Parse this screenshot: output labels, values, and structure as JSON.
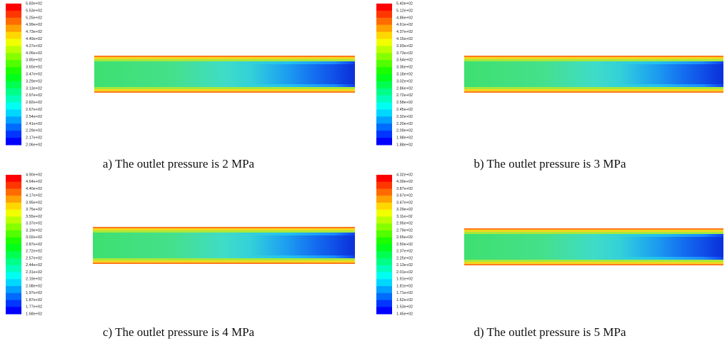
{
  "panels": [
    {
      "caption": "a) The outlet pressure is 2 MPa",
      "colorbar_labels": [
        "5.83e+02",
        "5.53e+02",
        "5.25e+02",
        "4.99e+02",
        "4.73e+02",
        "4.49e+02",
        "4.27e+02",
        "4.05e+02",
        "3.85e+02",
        "3.65e+02",
        "3.47e+02",
        "3.29e+02",
        "3.13e+02",
        "2.97e+02",
        "2.82e+02",
        "2.67e+02",
        "2.54e+02",
        "2.41e+02",
        "2.29e+02",
        "2.17e+02",
        "2.06e+02"
      ]
    },
    {
      "caption": "b) The outlet pressure is 3 MPa",
      "colorbar_labels": [
        "5.40e+02",
        "5.12e+02",
        "4.86e+02",
        "4.61e+02",
        "4.37e+02",
        "4.15e+02",
        "3.93e+02",
        "3.73e+02",
        "3.54e+02",
        "3.36e+02",
        "3.18e+02",
        "3.02e+02",
        "2.86e+02",
        "2.72e+02",
        "2.58e+02",
        "2.45e+02",
        "2.32e+02",
        "2.20e+02",
        "2.09e+02",
        "1.98e+02",
        "1.88e+02"
      ]
    },
    {
      "caption": "c) The outlet pressure is 4 MPa",
      "colorbar_labels": [
        "4.90e+02",
        "4.64e+02",
        "4.40e+02",
        "4.17e+02",
        "3.95e+02",
        "3.75e+02",
        "3.55e+02",
        "3.37e+02",
        "3.19e+02",
        "3.02e+02",
        "2.87e+02",
        "2.72e+02",
        "2.57e+02",
        "2.44e+02",
        "2.31e+02",
        "2.19e+02",
        "2.08e+02",
        "1.97e+02",
        "1.87e+02",
        "1.77e+02",
        "1.68e+02"
      ]
    },
    {
      "caption": "d) The outlet pressure is 5 MPa",
      "colorbar_labels": [
        "4.32e+02",
        "4.09e+02",
        "3.87e+02",
        "3.67e+02",
        "3.47e+02",
        "3.29e+02",
        "3.11e+02",
        "2.95e+02",
        "2.79e+02",
        "2.65e+02",
        "2.50e+02",
        "2.37e+02",
        "2.25e+02",
        "2.13e+02",
        "2.01e+02",
        "1.91e+02",
        "1.81e+02",
        "1.71e+02",
        "1.62e+02",
        "1.53e+02",
        "1.45e+02"
      ]
    }
  ]
}
